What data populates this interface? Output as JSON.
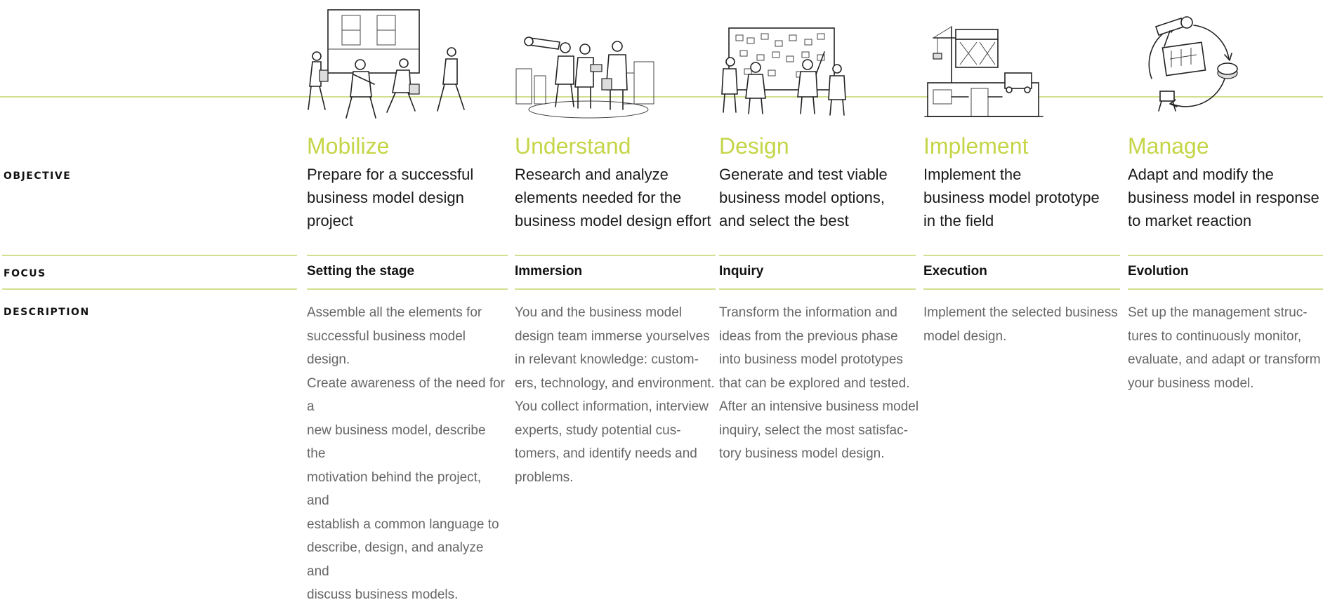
{
  "row_labels": {
    "objective": "OBJECTIVE",
    "focus": "FOCUS",
    "description": "DESCRIPTION"
  },
  "colors": {
    "accent_green": "#c5d547",
    "line_green": "#d3df8e",
    "body_text": "#1a1a1a",
    "description_text": "#666666"
  },
  "phases": [
    {
      "illustration": "team-meeting-board-illustration",
      "title": "Mobilize",
      "objective": "Prepare for a successful\nbusiness model design\nproject",
      "focus": "Setting the stage",
      "description": "Assemble all the elements for\nsuccessful business model design.\nCreate awareness of the need for a\nnew business model, describe the\nmotivation behind the project, and\nestablish a common language to\ndescribe, design, and analyze and\ndiscuss business models."
    },
    {
      "illustration": "telescope-team-illustration",
      "title": "Understand",
      "objective": "Research and analyze\nelements needed for the\nbusiness model design effort",
      "focus": "Immersion",
      "description": "You and the business model\ndesign team immerse yourselves\nin relevant knowledge: custom-\ners, technology, and environment.\nYou collect information, interview\nexperts, study potential cus-\ntomers, and identify needs and\nproblems."
    },
    {
      "illustration": "brainstorm-wall-illustration",
      "title": "Design",
      "objective": "Generate and test viable\nbusiness model options,\nand select the best",
      "focus": "Inquiry",
      "description": "Transform the information and\nideas from the previous phase\ninto business model prototypes\nthat can be explored and tested.\nAfter an intensive business model\ninquiry, select the most satisfac-\ntory business model design."
    },
    {
      "illustration": "factory-construction-illustration",
      "title": "Implement",
      "objective": "Implement the\nbusiness model prototype\nin the field",
      "focus": "Execution",
      "description": "Implement the selected business\nmodel design."
    },
    {
      "illustration": "management-cycle-illustration",
      "title": "Manage",
      "objective": "Adapt and modify the\nbusiness model in response\nto market reaction",
      "focus": "Evolution",
      "description": "Set up the management struc-\ntures to continuously monitor,\nevaluate, and adapt or transform\nyour business model."
    }
  ]
}
